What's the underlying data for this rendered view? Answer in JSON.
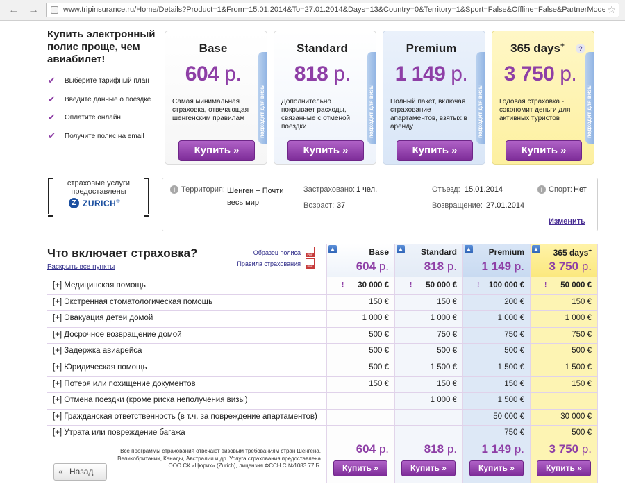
{
  "browser": {
    "url": "www.tripinsurance.ru/Home/Details?Product=1&From=15.01.2014&To=27.01.2014&Days=13&Country=0&Territory=1&Sport=False&Offline=False&PartnerMode=False&IsfromPart",
    "back_icon": "back-arrow-icon",
    "forward_icon": "forward-arrow-icon",
    "star_icon": "star-icon"
  },
  "promo": {
    "title": "Купить электронный полис проще, чем авиабилет!",
    "steps": [
      "Выберите тарифный план",
      "Введите данные о поездке",
      "Оплатите онлайн",
      "Получите полис на email"
    ]
  },
  "plans": [
    {
      "name": "Base",
      "price": "604",
      "currency": "р.",
      "desc": "Самая минимальная страховка, отвечающая шенгенским правилам",
      "visa_tab": "подходит для визы",
      "buy": "Купить »"
    },
    {
      "name": "Standard",
      "price": "818",
      "currency": "р.",
      "desc": "Дополнительно покрывает расходы, связанные с отменой поездки",
      "visa_tab": "подходит для визы",
      "buy": "Купить »"
    },
    {
      "name": "Premium",
      "price": "1 149",
      "currency": "р.",
      "desc": "Полный пакет, включая страхование апартаментов, взятых в аренду",
      "visa_tab": "подходит для визы",
      "buy": "Купить »"
    },
    {
      "name": "365 days",
      "sup": "+",
      "help": "?",
      "price": "3 750",
      "currency": "р.",
      "desc": "Годовая страховка - сэкономит деньги для активных туристов",
      "visa_tab": "подходит для визы",
      "buy": "Купить »"
    }
  ],
  "insurer": {
    "caption": "страховые услуги предоставлены",
    "logo_letter": "Z",
    "name": "ZURICH",
    "reg": "®"
  },
  "trip": {
    "territory_label": "Территория:",
    "territory_value": "Шенген + Почти весь мир",
    "insured_label": "Застраховано:",
    "insured_value": "1 чел.",
    "age_label": "Возраст:",
    "age_value": "37",
    "departure_label": "Отъезд:",
    "departure_value": "15.01.2014",
    "return_label": "Возвращение:",
    "return_value": "27.01.2014",
    "sport_label": "Спорт:",
    "sport_value": "Нет",
    "change_link": "Изменить",
    "info_glyph": "i"
  },
  "coverage": {
    "title": "Что включает страховка?",
    "expand_all": "Раскрыть все пункты",
    "sample_link": "Образец полиса",
    "rules_link": "Правила страхования",
    "columns": [
      {
        "name": "Base",
        "price": "604",
        "currency": "р."
      },
      {
        "name": "Standard",
        "price": "818",
        "currency": "р."
      },
      {
        "name": "Premium",
        "price": "1 149",
        "currency": "р."
      },
      {
        "name": "365 days",
        "sup": "+",
        "price": "3 750",
        "currency": "р."
      }
    ],
    "rows": [
      {
        "label": "[+] Медицинская помощь",
        "values": [
          "30 000 €",
          "50 000 €",
          "100 000 €",
          "50 000 €"
        ],
        "bold": true,
        "warn": "!"
      },
      {
        "label": "[+] Экстренная стоматологическая помощь",
        "values": [
          "150 €",
          "150 €",
          "200 €",
          "150 €"
        ]
      },
      {
        "label": "[+] Эвакуация детей домой",
        "values": [
          "1 000 €",
          "1 000 €",
          "1 000 €",
          "1 000 €"
        ]
      },
      {
        "label": "[+] Досрочное возвращение домой",
        "values": [
          "500 €",
          "750 €",
          "750 €",
          "750 €"
        ]
      },
      {
        "label": "[+] Задержка авиарейса",
        "values": [
          "500 €",
          "500 €",
          "500 €",
          "500 €"
        ]
      },
      {
        "label": "[+] Юридическая помощь",
        "values": [
          "500 €",
          "1 500 €",
          "1 500 €",
          "1 500 €"
        ]
      },
      {
        "label": "[+] Потеря или похищение документов",
        "values": [
          "150 €",
          "150 €",
          "150 €",
          "150 €"
        ]
      },
      {
        "label": "[+] Отмена поездки (кроме риска неполучения визы)",
        "values": [
          "",
          "1 000 €",
          "1 500 €",
          ""
        ]
      },
      {
        "label": "[+] Гражданская ответственность (в т.ч. за повреждение апартаментов)",
        "values": [
          "",
          "",
          "50 000 €",
          "30 000 €"
        ]
      },
      {
        "label": "[+] Утрата или повреждение багажа",
        "values": [
          "",
          "",
          "750 €",
          "500 €"
        ]
      }
    ],
    "footnote": "Все программы страхования отвечают визовым требованиям стран Шенгена, Великобритании, Канады, Австралии и др. Услуга страхования предоставлена ООО СК «Цюрих» (Zurich), лицензия ФССН С №1083 77.Б.",
    "buy": "Купить »",
    "back": "Назад"
  },
  "colors": {
    "accent": "#8e3fa6",
    "premium_bg": "#dde8f6",
    "year_bg": "#fdf4b3"
  }
}
